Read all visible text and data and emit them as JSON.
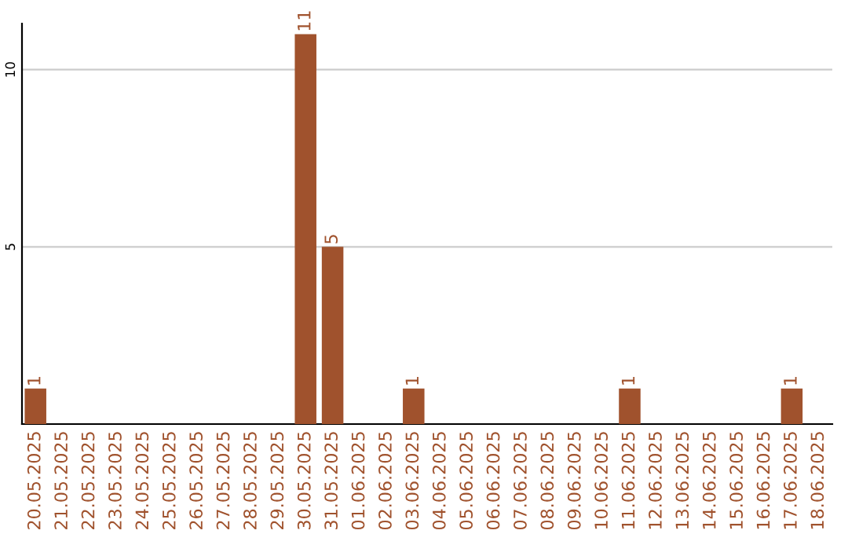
{
  "chart_data": {
    "type": "bar",
    "categories": [
      "20.05.2025",
      "21.05.2025",
      "22.05.2025",
      "23.05.2025",
      "24.05.2025",
      "25.05.2025",
      "26.05.2025",
      "27.05.2025",
      "28.05.2025",
      "29.05.2025",
      "30.05.2025",
      "31.05.2025",
      "01.06.2025",
      "02.06.2025",
      "03.06.2025",
      "04.06.2025",
      "05.06.2025",
      "06.06.2025",
      "07.06.2025",
      "08.06.2025",
      "09.06.2025",
      "10.06.2025",
      "11.06.2025",
      "12.06.2025",
      "13.06.2025",
      "14.06.2025",
      "15.06.2025",
      "16.06.2025",
      "17.06.2025",
      "18.06.2025"
    ],
    "values": [
      1,
      0,
      0,
      0,
      0,
      0,
      0,
      0,
      0,
      0,
      11,
      5,
      0,
      0,
      1,
      0,
      0,
      0,
      0,
      0,
      0,
      0,
      1,
      0,
      0,
      0,
      0,
      0,
      1,
      0
    ],
    "color": "#a0522d",
    "value_labels": [
      "1",
      null,
      null,
      null,
      null,
      null,
      null,
      null,
      null,
      null,
      "11",
      "5",
      null,
      null,
      "1",
      null,
      null,
      null,
      null,
      null,
      null,
      null,
      "1",
      null,
      null,
      null,
      null,
      null,
      "1",
      null
    ],
    "ylim": [
      0,
      11.3
    ],
    "yticks": [
      5,
      10
    ],
    "grid": "y"
  }
}
